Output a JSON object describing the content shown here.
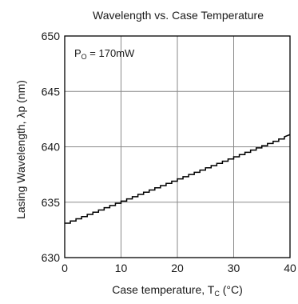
{
  "chart_data": {
    "type": "line",
    "title": "Wavelength vs. Case Temperature",
    "annotation": {
      "main": "P",
      "sub": "O",
      "rest": " = 170mW"
    },
    "ylabel": "Lasing Wavelength,  λp  (nm)",
    "xlabel": {
      "main": "Case temperature,  T",
      "sub": "C",
      "rest": "  (°C)"
    },
    "xlim": [
      0,
      40
    ],
    "ylim": [
      630,
      650
    ],
    "xticks": [
      0,
      10,
      20,
      30,
      40
    ],
    "yticks": [
      630,
      635,
      640,
      645,
      650
    ],
    "grid": true,
    "line_color": "#000000",
    "grid_color": "#8a8a8a",
    "series": [
      {
        "x": [
          0,
          1,
          1,
          2,
          2,
          3,
          3,
          4,
          4,
          5,
          5,
          6,
          6,
          7,
          7,
          8,
          8,
          9,
          9,
          10,
          10,
          11,
          11,
          12,
          12,
          13,
          13,
          14,
          14,
          15,
          15,
          16,
          16,
          17,
          17,
          18,
          18,
          19,
          19,
          20,
          20,
          21,
          21,
          22,
          22,
          23,
          23,
          24,
          24,
          25,
          25,
          26,
          26,
          27,
          27,
          28,
          28,
          29,
          29,
          30,
          30,
          31,
          31,
          32,
          32,
          33,
          33,
          34,
          34,
          35,
          35,
          36,
          36,
          37,
          37,
          38,
          38,
          39,
          39,
          40
        ],
        "y": [
          633.1,
          633.1,
          633.3,
          633.3,
          633.5,
          633.5,
          633.7,
          633.7,
          633.9,
          633.9,
          634.1,
          634.1,
          634.3,
          634.3,
          634.5,
          634.5,
          634.7,
          634.7,
          634.9,
          634.9,
          635.1,
          635.1,
          635.3,
          635.3,
          635.5,
          635.5,
          635.7,
          635.7,
          635.9,
          635.9,
          636.1,
          636.1,
          636.3,
          636.3,
          636.5,
          636.5,
          636.7,
          636.7,
          636.9,
          636.9,
          637.1,
          637.1,
          637.3,
          637.3,
          637.5,
          637.5,
          637.7,
          637.7,
          637.9,
          637.9,
          638.1,
          638.1,
          638.3,
          638.3,
          638.5,
          638.5,
          638.7,
          638.7,
          638.9,
          638.9,
          639.1,
          639.1,
          639.3,
          639.3,
          639.5,
          639.5,
          639.7,
          639.7,
          639.9,
          639.9,
          640.1,
          640.1,
          640.3,
          640.3,
          640.5,
          640.5,
          640.7,
          640.7,
          640.9,
          641.1
        ]
      }
    ]
  }
}
